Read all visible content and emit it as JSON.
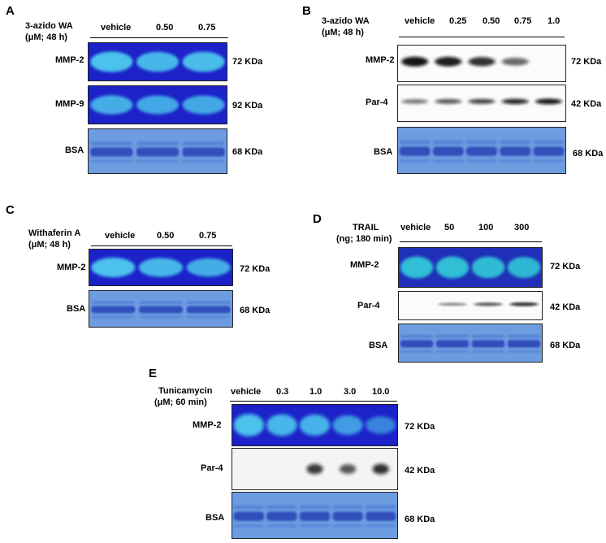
{
  "panels": {
    "A": {
      "letter": "A",
      "treatment": [
        "3-azido WA",
        "(μM; 48 h)"
      ],
      "lanes": [
        "vehicle",
        "0.50",
        "0.75"
      ],
      "rows": [
        {
          "name": "MMP-2",
          "size": "72 KDa"
        },
        {
          "name": "MMP-9",
          "size": "92 KDa"
        },
        {
          "name": "BSA",
          "size": "68 KDa"
        }
      ]
    },
    "B": {
      "letter": "B",
      "treatment": [
        "3-azido WA",
        "(μM; 48 h)"
      ],
      "lanes": [
        "vehicle",
        "0.25",
        "0.50",
        "0.75",
        "1.0"
      ],
      "rows": [
        {
          "name": "MMP-2",
          "size": "72 KDa"
        },
        {
          "name": "Par-4",
          "size": "42 KDa"
        },
        {
          "name": "BSA",
          "size": "68 KDa"
        }
      ]
    },
    "C": {
      "letter": "C",
      "treatment": [
        "Withaferin A",
        "(μM; 48 h)"
      ],
      "lanes": [
        "vehicle",
        "0.50",
        "0.75"
      ],
      "rows": [
        {
          "name": "MMP-2",
          "size": "72 KDa"
        },
        {
          "name": "BSA",
          "size": "68 KDa"
        }
      ]
    },
    "D": {
      "letter": "D",
      "treatment": [
        "TRAIL",
        "(ng; 180 min)"
      ],
      "lanes": [
        "vehicle",
        "50",
        "100",
        "300"
      ],
      "rows": [
        {
          "name": "MMP-2",
          "size": "72 KDa"
        },
        {
          "name": "Par-4",
          "size": "42 KDa"
        },
        {
          "name": "BSA",
          "size": "68 KDa"
        }
      ]
    },
    "E": {
      "letter": "E",
      "treatment": [
        "Tunicamycin",
        "(μM; 60 min)"
      ],
      "lanes": [
        "vehicle",
        "0.3",
        "1.0",
        "3.0",
        "10.0"
      ],
      "rows": [
        {
          "name": "MMP-2",
          "size": "72 KDa"
        },
        {
          "name": "Par-4",
          "size": "42 KDa"
        },
        {
          "name": "BSA",
          "size": "68 KDa"
        }
      ]
    }
  },
  "colors": {
    "zymogram_bg": "#1c22c8",
    "zymogram_band": "#4fd0f0",
    "bsa_bg": "#6d9ce0",
    "bsa_band": "#2a46b8",
    "western_bg": "#fbfbfb",
    "western_band": "#111111"
  }
}
